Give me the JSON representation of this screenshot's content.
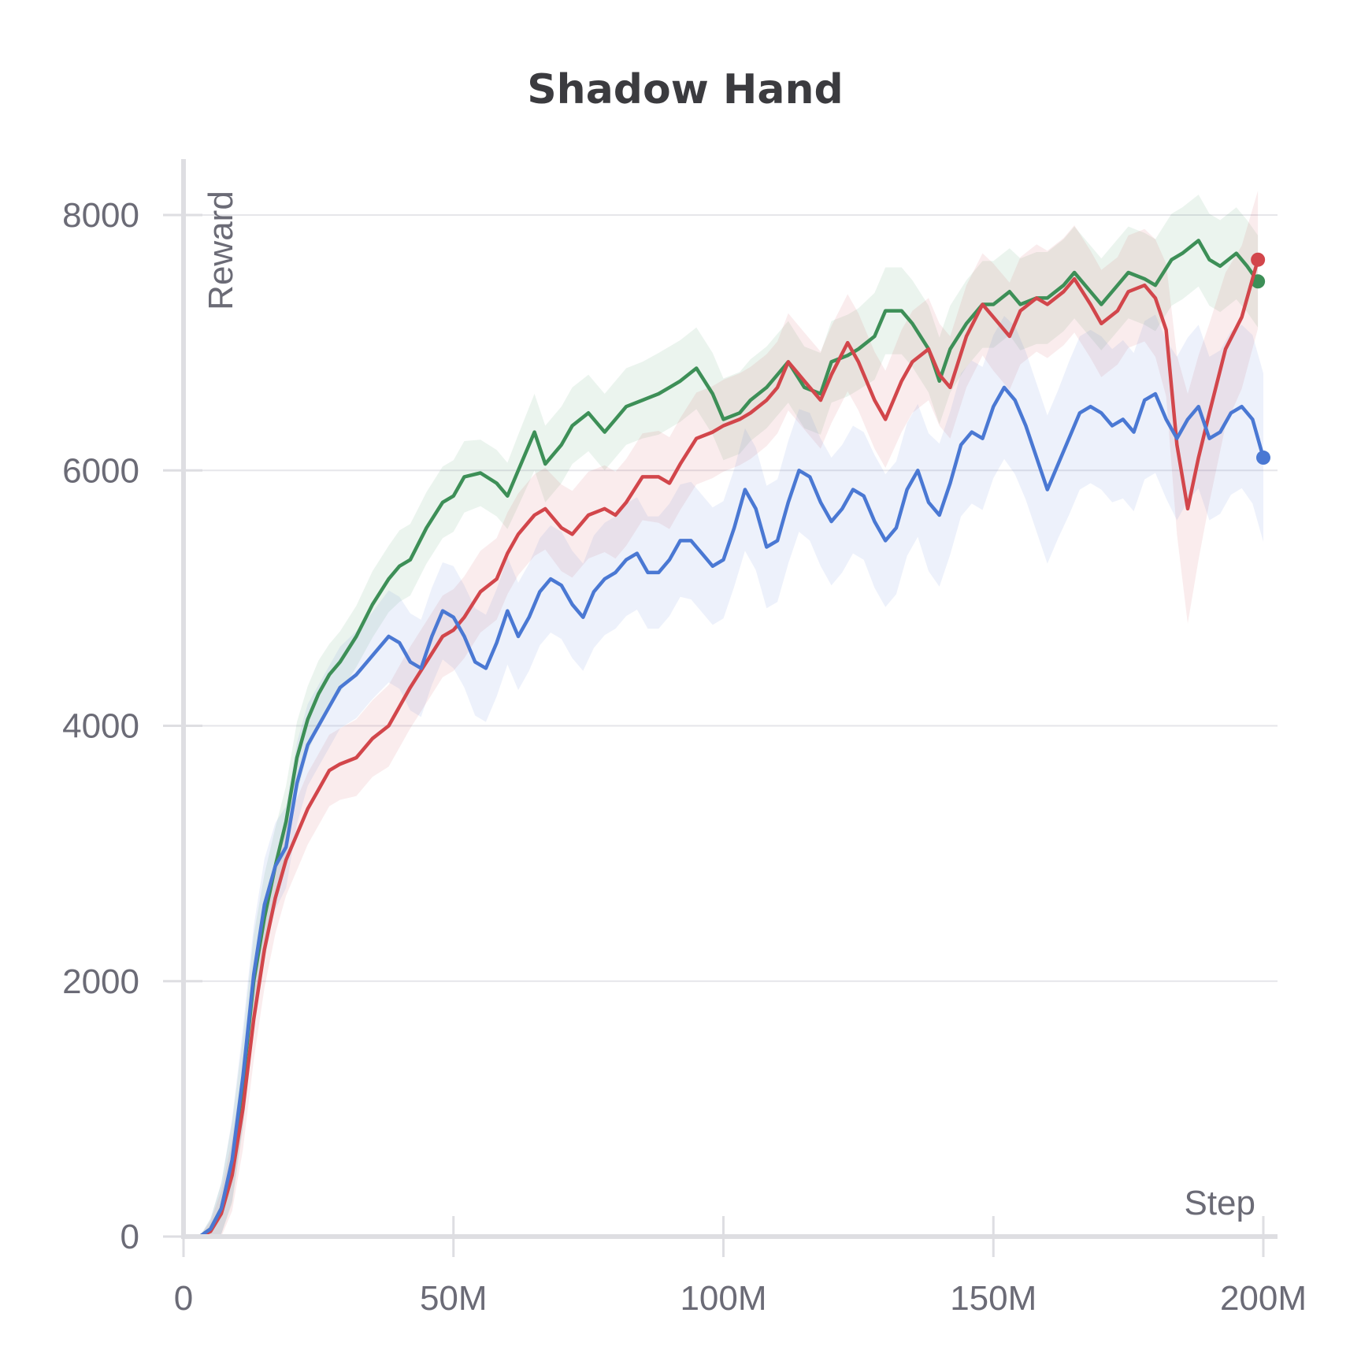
{
  "chart_data": {
    "type": "line",
    "title": "Shadow Hand",
    "xlabel": "Step",
    "ylabel": "Reward",
    "xlim": [
      0,
      200000000
    ],
    "ylim": [
      0,
      8400
    ],
    "x_ticks": [
      0,
      50000000,
      100000000,
      150000000,
      200000000
    ],
    "x_tick_labels": [
      "0",
      "50M",
      "100M",
      "150M",
      "200M"
    ],
    "y_ticks": [
      0,
      2000,
      4000,
      6000,
      8000
    ],
    "y_tick_labels": [
      "0",
      "2000",
      "4000",
      "6000",
      "8000"
    ],
    "grid": true,
    "series": [
      {
        "color": "#3d8f57",
        "x": [
          3000000,
          5000000,
          7000000,
          9000000,
          11000000,
          13000000,
          15000000,
          17000000,
          19000000,
          21000000,
          23000000,
          25000000,
          27000000,
          29000000,
          32000000,
          35000000,
          38000000,
          40000000,
          42000000,
          45000000,
          48000000,
          50000000,
          52000000,
          55000000,
          58000000,
          60000000,
          62000000,
          65000000,
          67000000,
          70000000,
          72000000,
          75000000,
          78000000,
          80000000,
          82000000,
          85000000,
          88000000,
          90000000,
          92000000,
          95000000,
          98000000,
          100000000,
          103000000,
          105000000,
          108000000,
          110000000,
          112000000,
          115000000,
          118000000,
          120000000,
          123000000,
          125000000,
          128000000,
          130000000,
          133000000,
          135000000,
          138000000,
          140000000,
          142000000,
          145000000,
          148000000,
          150000000,
          153000000,
          155000000,
          158000000,
          160000000,
          163000000,
          165000000,
          168000000,
          170000000,
          173000000,
          175000000,
          178000000,
          180000000,
          183000000,
          185000000,
          188000000,
          190000000,
          192000000,
          195000000,
          197000000,
          199000000
        ],
        "values": [
          0,
          60,
          220,
          580,
          1200,
          2000,
          2500,
          2900,
          3250,
          3750,
          4050,
          4250,
          4400,
          4500,
          4700,
          4950,
          5150,
          5250,
          5300,
          5550,
          5750,
          5800,
          5950,
          5980,
          5900,
          5800,
          6000,
          6300,
          6050,
          6200,
          6350,
          6450,
          6300,
          6400,
          6500,
          6550,
          6600,
          6650,
          6700,
          6800,
          6600,
          6400,
          6450,
          6550,
          6650,
          6750,
          6850,
          6650,
          6600,
          6850,
          6900,
          6950,
          7050,
          7250,
          7250,
          7150,
          6950,
          6700,
          6950,
          7150,
          7300,
          7300,
          7400,
          7300,
          7350,
          7350,
          7450,
          7550,
          7400,
          7300,
          7450,
          7550,
          7500,
          7450,
          7650,
          7700,
          7800,
          7650,
          7600,
          7700,
          7600,
          7480
        ],
        "band": [
          0,
          80,
          200,
          320,
          360,
          360,
          340,
          300,
          280,
          280,
          260,
          260,
          240,
          240,
          240,
          260,
          260,
          280,
          280,
          280,
          280,
          280,
          280,
          260,
          260,
          260,
          280,
          300,
          300,
          300,
          300,
          300,
          300,
          300,
          300,
          300,
          320,
          320,
          320,
          320,
          320,
          320,
          320,
          320,
          320,
          320,
          320,
          320,
          320,
          320,
          320,
          320,
          340,
          340,
          340,
          340,
          340,
          340,
          340,
          340,
          340,
          340,
          340,
          360,
          360,
          360,
          360,
          360,
          360,
          360,
          360,
          360,
          360,
          360,
          360,
          360,
          360,
          360,
          360,
          360,
          360,
          360
        ]
      },
      {
        "color": "#d2464b",
        "x": [
          3000000,
          5000000,
          7000000,
          9000000,
          11000000,
          13000000,
          15000000,
          17000000,
          19000000,
          21000000,
          23000000,
          25000000,
          27000000,
          29000000,
          32000000,
          35000000,
          38000000,
          40000000,
          42000000,
          45000000,
          48000000,
          50000000,
          52000000,
          55000000,
          58000000,
          60000000,
          62000000,
          65000000,
          67000000,
          70000000,
          72000000,
          75000000,
          78000000,
          80000000,
          82000000,
          85000000,
          88000000,
          90000000,
          92000000,
          95000000,
          98000000,
          100000000,
          103000000,
          105000000,
          108000000,
          110000000,
          112000000,
          115000000,
          118000000,
          120000000,
          123000000,
          125000000,
          128000000,
          130000000,
          133000000,
          135000000,
          138000000,
          140000000,
          142000000,
          145000000,
          148000000,
          150000000,
          153000000,
          155000000,
          158000000,
          160000000,
          163000000,
          165000000,
          168000000,
          170000000,
          173000000,
          175000000,
          178000000,
          180000000,
          182000000,
          184000000,
          186000000,
          188000000,
          190000000,
          193000000,
          196000000,
          199000000
        ],
        "values": [
          0,
          40,
          180,
          480,
          1000,
          1700,
          2250,
          2650,
          2950,
          3150,
          3350,
          3500,
          3650,
          3700,
          3750,
          3900,
          4000,
          4150,
          4300,
          4500,
          4700,
          4750,
          4850,
          5050,
          5150,
          5350,
          5500,
          5650,
          5700,
          5550,
          5500,
          5650,
          5700,
          5650,
          5750,
          5950,
          5950,
          5900,
          6050,
          6250,
          6300,
          6350,
          6400,
          6450,
          6550,
          6650,
          6850,
          6700,
          6550,
          6750,
          7000,
          6850,
          6550,
          6400,
          6700,
          6850,
          6950,
          6750,
          6650,
          7050,
          7300,
          7200,
          7050,
          7250,
          7350,
          7300,
          7400,
          7500,
          7300,
          7150,
          7250,
          7400,
          7450,
          7350,
          7100,
          6200,
          5700,
          6100,
          6450,
          6950,
          7200,
          7650
        ],
        "band": [
          0,
          80,
          180,
          280,
          320,
          320,
          300,
          280,
          280,
          280,
          280,
          280,
          280,
          280,
          300,
          300,
          320,
          320,
          320,
          320,
          320,
          320,
          320,
          320,
          320,
          320,
          320,
          320,
          320,
          340,
          340,
          340,
          340,
          340,
          340,
          340,
          360,
          360,
          360,
          360,
          360,
          360,
          360,
          360,
          360,
          360,
          380,
          380,
          380,
          380,
          380,
          380,
          380,
          380,
          400,
          400,
          400,
          400,
          400,
          400,
          400,
          420,
          420,
          420,
          420,
          420,
          420,
          420,
          420,
          420,
          420,
          440,
          440,
          460,
          520,
          700,
          900,
          800,
          700,
          600,
          560,
          540
        ]
      },
      {
        "color": "#4a78d3",
        "x": [
          3000000,
          5000000,
          7000000,
          9000000,
          11000000,
          13000000,
          15000000,
          17000000,
          19000000,
          21000000,
          23000000,
          25000000,
          27000000,
          29000000,
          32000000,
          35000000,
          38000000,
          40000000,
          42000000,
          44000000,
          46000000,
          48000000,
          50000000,
          52000000,
          54000000,
          56000000,
          58000000,
          60000000,
          62000000,
          64000000,
          66000000,
          68000000,
          70000000,
          72000000,
          74000000,
          76000000,
          78000000,
          80000000,
          82000000,
          84000000,
          86000000,
          88000000,
          90000000,
          92000000,
          94000000,
          96000000,
          98000000,
          100000000,
          102000000,
          104000000,
          106000000,
          108000000,
          110000000,
          112000000,
          114000000,
          116000000,
          118000000,
          120000000,
          122000000,
          124000000,
          126000000,
          128000000,
          130000000,
          132000000,
          134000000,
          136000000,
          138000000,
          140000000,
          142000000,
          144000000,
          146000000,
          148000000,
          150000000,
          152000000,
          154000000,
          156000000,
          158000000,
          160000000,
          162000000,
          164000000,
          166000000,
          168000000,
          170000000,
          172000000,
          174000000,
          176000000,
          178000000,
          180000000,
          182000000,
          184000000,
          186000000,
          188000000,
          190000000,
          192000000,
          194000000,
          196000000,
          198000000,
          200000000
        ],
        "values": [
          0,
          60,
          220,
          600,
          1250,
          2050,
          2600,
          2900,
          3050,
          3550,
          3850,
          4000,
          4150,
          4300,
          4400,
          4550,
          4700,
          4650,
          4500,
          4450,
          4700,
          4900,
          4850,
          4700,
          4500,
          4450,
          4650,
          4900,
          4700,
          4850,
          5050,
          5150,
          5100,
          4950,
          4850,
          5050,
          5150,
          5200,
          5300,
          5350,
          5200,
          5200,
          5300,
          5450,
          5450,
          5350,
          5250,
          5300,
          5550,
          5850,
          5700,
          5400,
          5450,
          5750,
          6000,
          5950,
          5750,
          5600,
          5700,
          5850,
          5800,
          5600,
          5450,
          5550,
          5850,
          6000,
          5750,
          5650,
          5900,
          6200,
          6300,
          6250,
          6500,
          6650,
          6550,
          6350,
          6100,
          5850,
          6050,
          6250,
          6450,
          6500,
          6450,
          6350,
          6400,
          6300,
          6550,
          6600,
          6400,
          6250,
          6400,
          6500,
          6250,
          6300,
          6450,
          6500,
          6400,
          6100
        ],
        "band": [
          0,
          80,
          200,
          320,
          380,
          380,
          360,
          340,
          320,
          320,
          320,
          320,
          320,
          320,
          340,
          340,
          360,
          360,
          380,
          380,
          380,
          380,
          400,
          400,
          420,
          420,
          420,
          420,
          420,
          420,
          420,
          420,
          420,
          420,
          420,
          440,
          440,
          440,
          440,
          440,
          440,
          440,
          440,
          440,
          460,
          460,
          460,
          460,
          460,
          480,
          480,
          480,
          480,
          480,
          480,
          500,
          500,
          500,
          500,
          500,
          500,
          520,
          520,
          520,
          520,
          520,
          540,
          560,
          560,
          560,
          560,
          560,
          560,
          560,
          580,
          580,
          580,
          580,
          580,
          600,
          600,
          600,
          600,
          600,
          620,
          620,
          620,
          620,
          620,
          640,
          640,
          640,
          640,
          640,
          640,
          640,
          660,
          660
        ]
      }
    ]
  }
}
